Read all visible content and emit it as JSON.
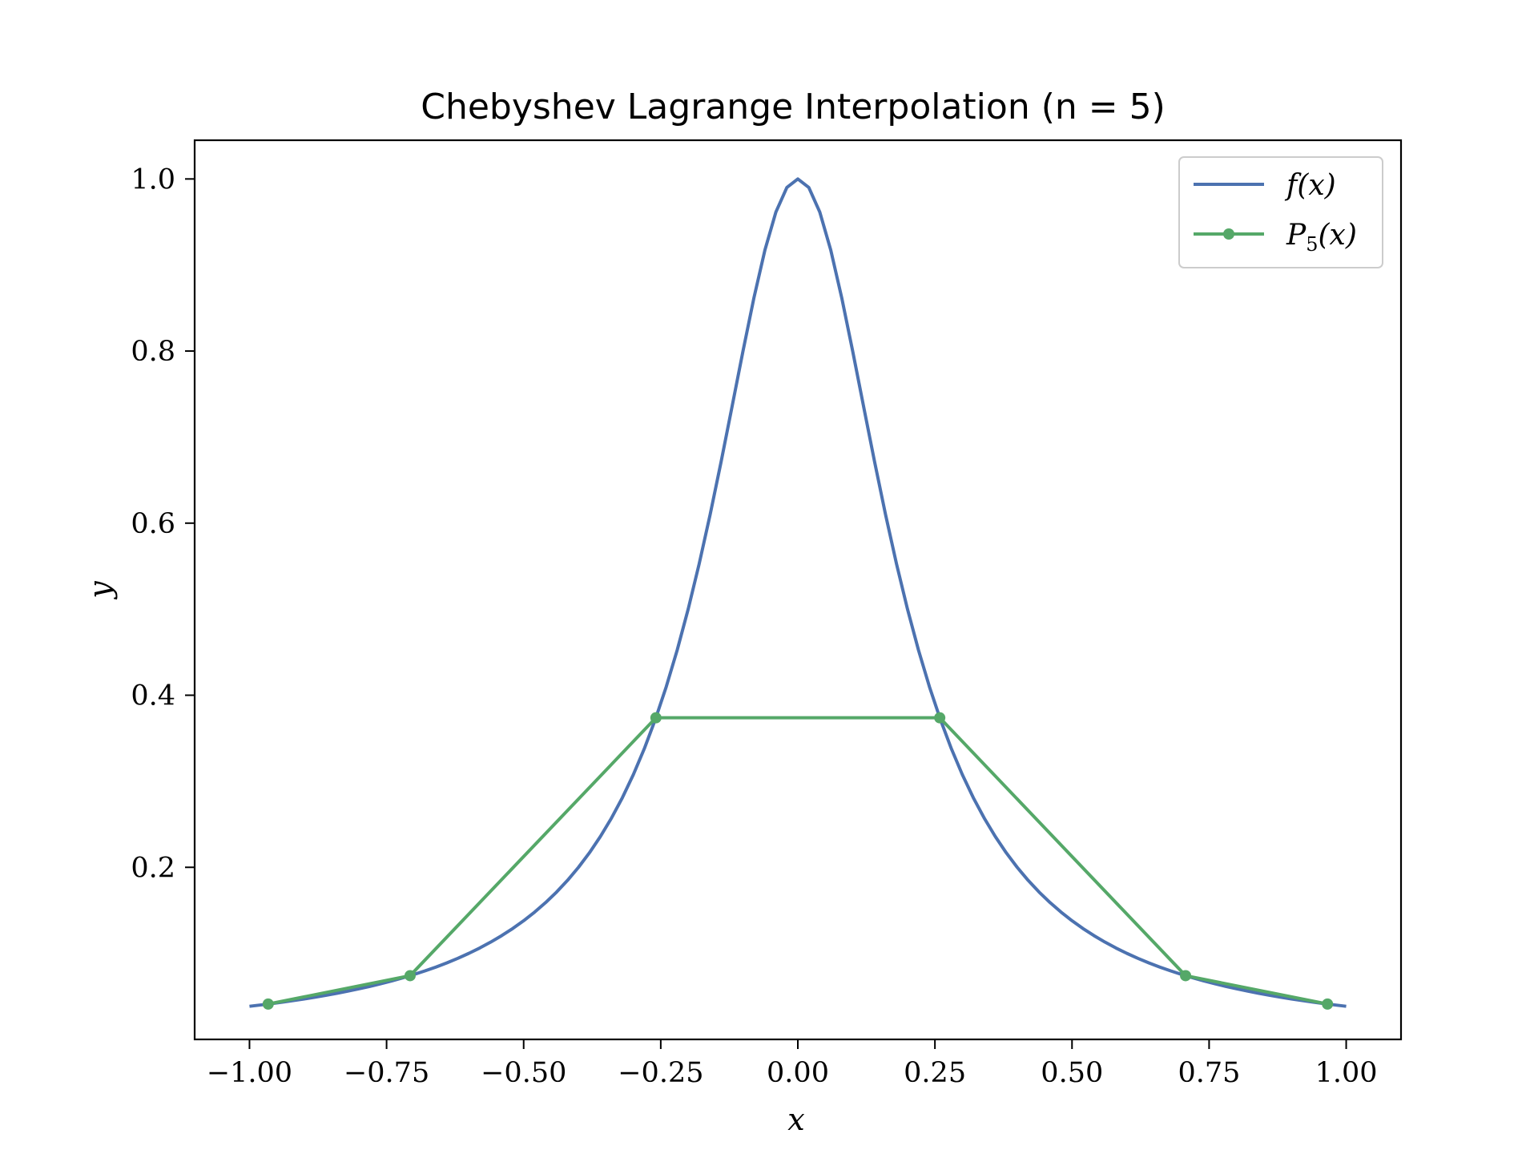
{
  "chart_data": {
    "type": "line",
    "title": "Chebyshev Lagrange Interpolation (n = 5)",
    "xlabel": "x",
    "ylabel": "y",
    "xlim": [
      -1.1,
      1.1
    ],
    "ylim": [
      0.0,
      1.045
    ],
    "xticks": [
      -1.0,
      -0.75,
      -0.5,
      -0.25,
      0.0,
      0.25,
      0.5,
      0.75,
      1.0
    ],
    "xtick_labels": [
      "−1.00",
      "−0.75",
      "−0.50",
      "−0.25",
      "0.00",
      "0.25",
      "0.50",
      "0.75",
      "1.00"
    ],
    "yticks": [
      0.2,
      0.4,
      0.6,
      0.8,
      1.0
    ],
    "ytick_labels": [
      "0.2",
      "0.4",
      "0.6",
      "0.8",
      "1.0"
    ],
    "grid": false,
    "legend_position": "top-right",
    "series": [
      {
        "name": "f(x)",
        "legend_main": "f(x)",
        "legend_sub": "",
        "color": "#4c72b0",
        "marker": "none",
        "function": "1/(1+25x^2)",
        "x_range": [
          -1.0,
          1.0
        ]
      },
      {
        "name": "P5(x)",
        "legend_main": "P",
        "legend_sub": "5",
        "legend_rest": "(x)",
        "color": "#55a868",
        "marker": "circle",
        "x": [
          -0.9659,
          -0.7071,
          -0.2588,
          0.2588,
          0.7071,
          0.9659
        ],
        "y": [
          0.0411,
          0.0741,
          0.3738,
          0.3738,
          0.0741,
          0.0411
        ]
      }
    ]
  }
}
